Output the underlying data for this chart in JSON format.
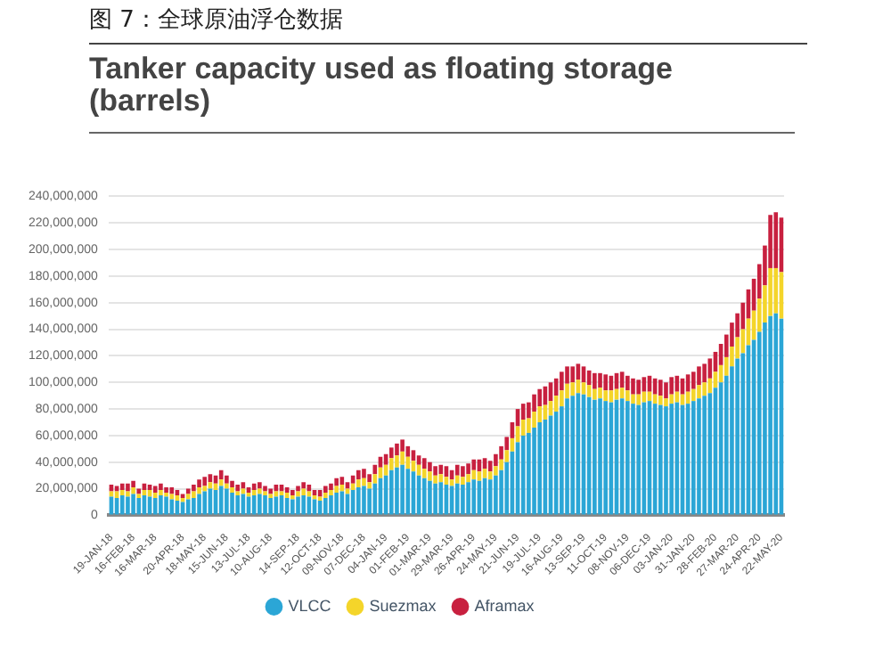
{
  "chart_data": {
    "type": "bar",
    "title": "图 7：全球原油浮仓数据",
    "subtitle": "Tanker capacity used as floating storage (barrels)",
    "stacked": true,
    "grid": "y",
    "legend": "bottom",
    "categories": [
      "19-JAN-18",
      null,
      null,
      null,
      "16-FEB-18",
      null,
      null,
      null,
      "16-MAR-18",
      null,
      null,
      null,
      null,
      "20-APR-18",
      null,
      null,
      null,
      "18-MAY-18",
      null,
      null,
      null,
      "15-JUN-18",
      null,
      null,
      null,
      "13-JUL-18",
      null,
      null,
      null,
      "10-AUG-18",
      null,
      null,
      null,
      null,
      "14-SEP-18",
      null,
      null,
      null,
      "12-OCT-18",
      null,
      null,
      null,
      "09-NOV-18",
      null,
      null,
      null,
      "07-DEC-18",
      null,
      null,
      null,
      "04-JAN-19",
      null,
      null,
      null,
      "01-FEB-19",
      null,
      null,
      null,
      "01-MAR-19",
      null,
      null,
      null,
      "29-MAR-19",
      null,
      null,
      null,
      "26-APR-19",
      null,
      null,
      null,
      "24-MAY-19",
      null,
      null,
      null,
      "21-JUN-19",
      null,
      null,
      null,
      "19-JUL-19",
      null,
      null,
      null,
      "16-AUG-19",
      null,
      null,
      null,
      "13-SEP-19",
      null,
      null,
      null,
      "11-OCT-19",
      null,
      null,
      null,
      "08-NOV-19",
      null,
      null,
      null,
      "06-DEC-19",
      null,
      null,
      null,
      "03-JAN-20",
      null,
      null,
      null,
      "31-JAN-20",
      null,
      null,
      null,
      "28-FEB-20",
      null,
      null,
      null,
      "27-MAR-20",
      null,
      null,
      null,
      "24-APR-20",
      null,
      null,
      null,
      "22-MAY-20"
    ],
    "ylim": [
      0,
      240000000
    ],
    "yticks": [
      {
        "value": 0,
        "label": "0"
      },
      {
        "value": 20000000,
        "label": "20,000,000"
      },
      {
        "value": 40000000,
        "label": "40,000,000"
      },
      {
        "value": 60000000,
        "label": "60,000,000"
      },
      {
        "value": 80000000,
        "label": "80,000,000"
      },
      {
        "value": 100000000,
        "label": "100,000,000"
      },
      {
        "value": 120000000,
        "label": "120,000,000"
      },
      {
        "value": 140000000,
        "label": "140,000,000"
      },
      {
        "value": 160000000,
        "label": "160,000,000"
      },
      {
        "value": 180000000,
        "label": "180,000,000"
      },
      {
        "value": 200000000,
        "label": "200,000,000"
      },
      {
        "value": 220000000,
        "label": "220,000,000"
      },
      {
        "value": 240000000,
        "label": "240,000,000"
      }
    ],
    "series": [
      {
        "name": "VLCC",
        "color": "#2ba6d6",
        "values": [
          14000000,
          13000000,
          15000000,
          14000000,
          16000000,
          13000000,
          15000000,
          14000000,
          13000000,
          15000000,
          14000000,
          12000000,
          11000000,
          10000000,
          12000000,
          13000000,
          16000000,
          18000000,
          20000000,
          19000000,
          22000000,
          20000000,
          17000000,
          15000000,
          16000000,
          14000000,
          15000000,
          16000000,
          15000000,
          13000000,
          14000000,
          15000000,
          13000000,
          12000000,
          14000000,
          15000000,
          14000000,
          12000000,
          11000000,
          13000000,
          15000000,
          17000000,
          18000000,
          16000000,
          19000000,
          21000000,
          22000000,
          20000000,
          24000000,
          28000000,
          30000000,
          34000000,
          36000000,
          38000000,
          35000000,
          33000000,
          30000000,
          28000000,
          26000000,
          24000000,
          25000000,
          23000000,
          22000000,
          24000000,
          23000000,
          25000000,
          27000000,
          26000000,
          28000000,
          27000000,
          30000000,
          34000000,
          40000000,
          48000000,
          55000000,
          60000000,
          62000000,
          66000000,
          70000000,
          72000000,
          75000000,
          78000000,
          82000000,
          88000000,
          90000000,
          92000000,
          91000000,
          89000000,
          87000000,
          88000000,
          86000000,
          85000000,
          87000000,
          88000000,
          86000000,
          84000000,
          83000000,
          85000000,
          86000000,
          84000000,
          83000000,
          82000000,
          84000000,
          85000000,
          83000000,
          84000000,
          86000000,
          88000000,
          90000000,
          92000000,
          96000000,
          100000000,
          105000000,
          112000000,
          118000000,
          122000000,
          128000000,
          132000000,
          138000000,
          145000000,
          150000000,
          152000000,
          148000000
        ]
      },
      {
        "name": "Suezmax",
        "color": "#f4d52a",
        "values": [
          4000000,
          5000000,
          4000000,
          4000000,
          5000000,
          3000000,
          4000000,
          5000000,
          4000000,
          4000000,
          3000000,
          4000000,
          4000000,
          3000000,
          4000000,
          5000000,
          5000000,
          4000000,
          5000000,
          5000000,
          5000000,
          4000000,
          4000000,
          3000000,
          4000000,
          3000000,
          4000000,
          4000000,
          3000000,
          3000000,
          4000000,
          3000000,
          4000000,
          3000000,
          4000000,
          5000000,
          4000000,
          3000000,
          3000000,
          4000000,
          4000000,
          5000000,
          5000000,
          4000000,
          5000000,
          6000000,
          6000000,
          5000000,
          7000000,
          8000000,
          8000000,
          9000000,
          9000000,
          10000000,
          9000000,
          8000000,
          8000000,
          7000000,
          7000000,
          6000000,
          6000000,
          6000000,
          5000000,
          6000000,
          6000000,
          6000000,
          7000000,
          7000000,
          7000000,
          6000000,
          7000000,
          8000000,
          9000000,
          10000000,
          12000000,
          12000000,
          11000000,
          12000000,
          12000000,
          11000000,
          11000000,
          12000000,
          12000000,
          11000000,
          10000000,
          10000000,
          9000000,
          9000000,
          8000000,
          8000000,
          8000000,
          9000000,
          8000000,
          8000000,
          8000000,
          7000000,
          8000000,
          8000000,
          7000000,
          7000000,
          7000000,
          6000000,
          7000000,
          8000000,
          8000000,
          9000000,
          9000000,
          10000000,
          10000000,
          11000000,
          12000000,
          13000000,
          14000000,
          15000000,
          16000000,
          18000000,
          20000000,
          22000000,
          25000000,
          28000000,
          36000000,
          34000000,
          35000000
        ]
      },
      {
        "name": "Aframax",
        "color": "#c8203f",
        "values": [
          5000000,
          4000000,
          5000000,
          6000000,
          5000000,
          4000000,
          5000000,
          4000000,
          5000000,
          5000000,
          4000000,
          5000000,
          4000000,
          3000000,
          4000000,
          5000000,
          6000000,
          7000000,
          6000000,
          6000000,
          7000000,
          6000000,
          5000000,
          5000000,
          5000000,
          4000000,
          5000000,
          5000000,
          4000000,
          4000000,
          5000000,
          5000000,
          4000000,
          4000000,
          4000000,
          5000000,
          5000000,
          4000000,
          5000000,
          5000000,
          5000000,
          6000000,
          6000000,
          5000000,
          6000000,
          7000000,
          7000000,
          6000000,
          7000000,
          8000000,
          8000000,
          8000000,
          9000000,
          9000000,
          8000000,
          8000000,
          7000000,
          8000000,
          7000000,
          7000000,
          7000000,
          8000000,
          7000000,
          8000000,
          8000000,
          8000000,
          8000000,
          9000000,
          8000000,
          8000000,
          9000000,
          10000000,
          10000000,
          12000000,
          13000000,
          12000000,
          12000000,
          13000000,
          13000000,
          14000000,
          14000000,
          13000000,
          14000000,
          13000000,
          12000000,
          12000000,
          12000000,
          11000000,
          12000000,
          11000000,
          12000000,
          11000000,
          12000000,
          12000000,
          11000000,
          12000000,
          11000000,
          11000000,
          12000000,
          12000000,
          12000000,
          12000000,
          13000000,
          12000000,
          12000000,
          13000000,
          13000000,
          14000000,
          14000000,
          15000000,
          15000000,
          16000000,
          17000000,
          18000000,
          18000000,
          20000000,
          22000000,
          24000000,
          26000000,
          30000000,
          40000000,
          42000000,
          41000000
        ]
      }
    ]
  }
}
